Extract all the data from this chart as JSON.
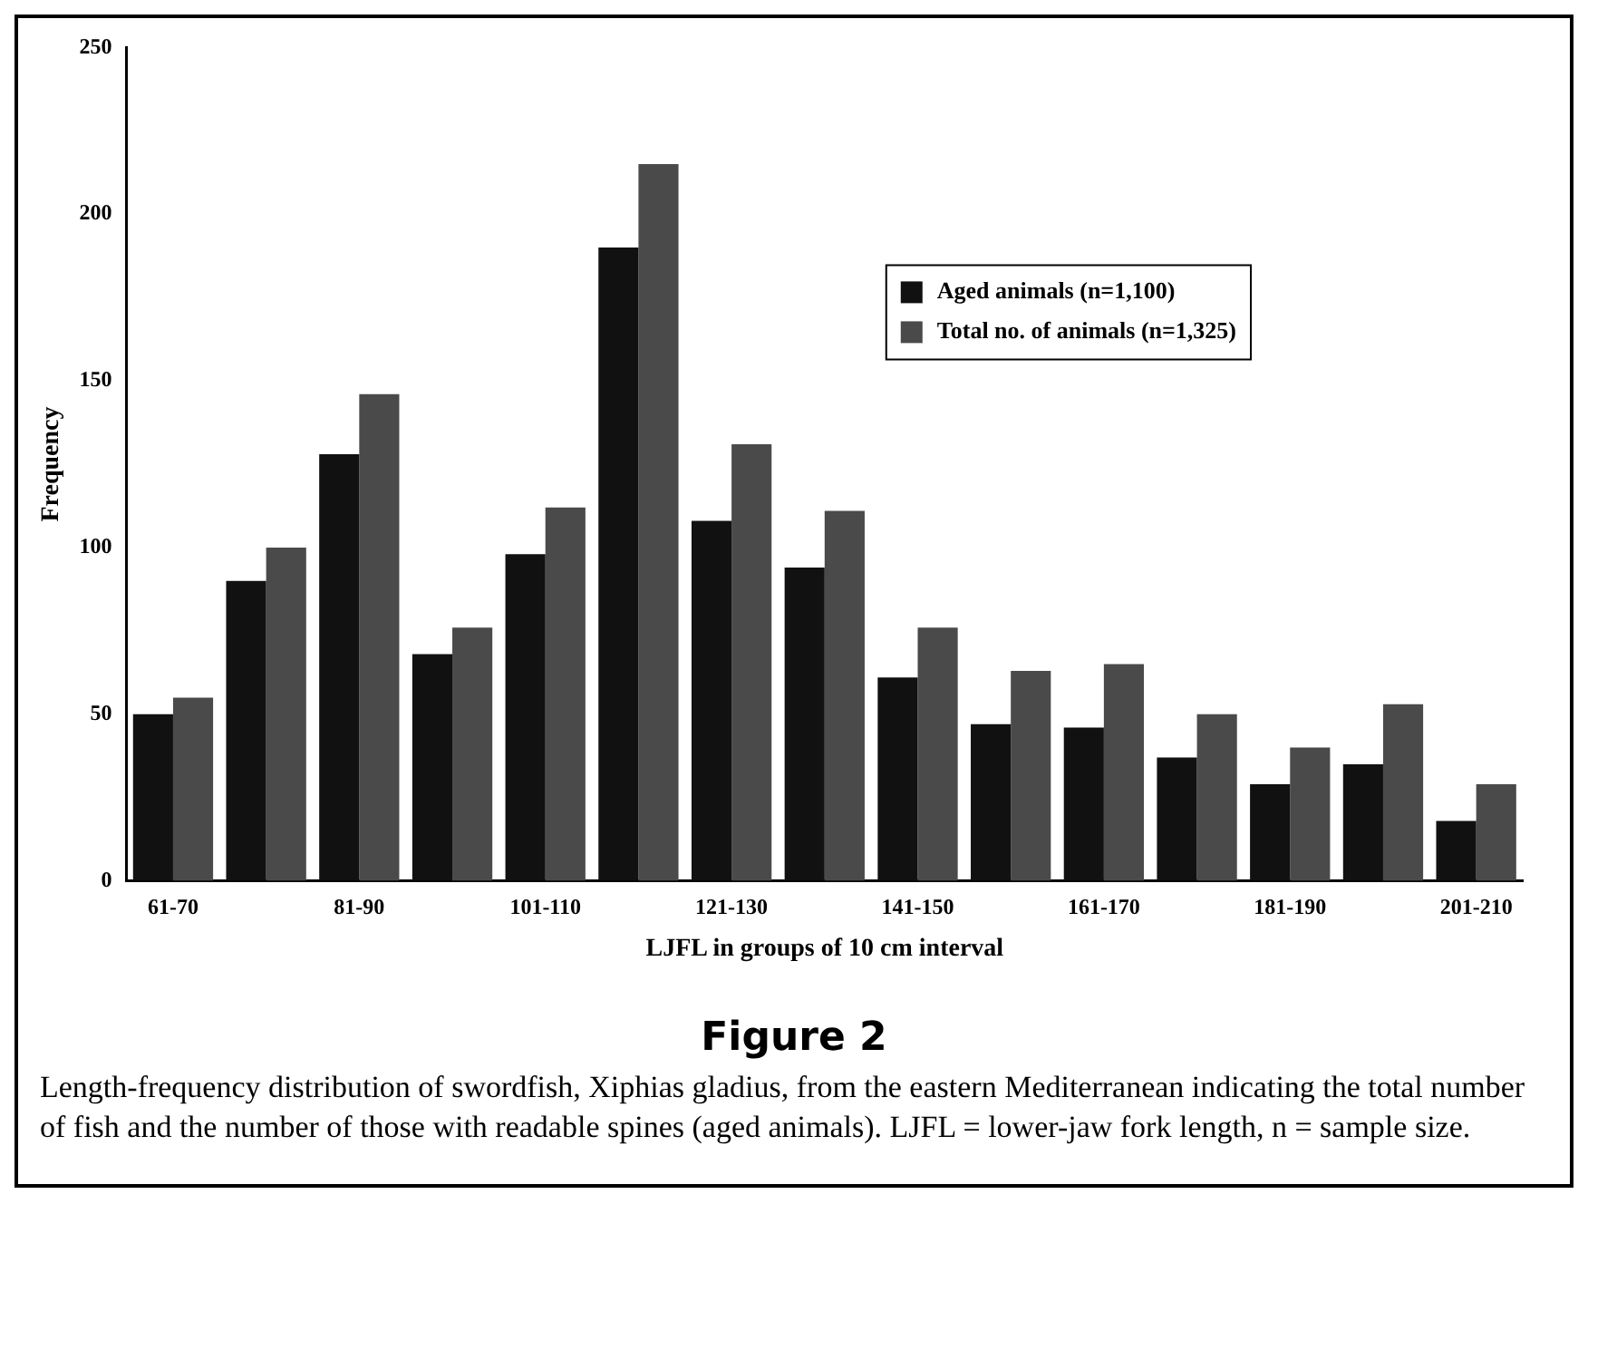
{
  "chart_data": {
    "type": "bar",
    "title": "Figure 2",
    "xlabel": "LJFL in groups of 10 cm interval",
    "ylabel": "Frequency",
    "categories": [
      "61-70",
      null,
      "81-90",
      null,
      "101-110",
      null,
      "121-130",
      null,
      "141-150",
      null,
      "161-170",
      null,
      "181-190",
      null,
      "201-210"
    ],
    "series": [
      {
        "name": "Aged animals (n=1,100)",
        "color": "#111111",
        "values": [
          50,
          90,
          128,
          68,
          98,
          190,
          108,
          94,
          61,
          47,
          46,
          37,
          29,
          35,
          18
        ]
      },
      {
        "name": "Total no. of animals (n=1,325)",
        "color": "#4a4a4a",
        "values": [
          55,
          100,
          146,
          76,
          112,
          215,
          131,
          111,
          76,
          63,
          65,
          50,
          40,
          53,
          29
        ]
      }
    ],
    "ylim": [
      0,
      250
    ],
    "yticks": [
      0,
      50,
      100,
      150,
      200,
      250
    ],
    "grid": false,
    "legend": "top right",
    "annotations": [
      "Length-frequency distribution of swordfish, Xiphias gladius, from the eastern Mediterranean indicating the total number of fish and the number of those with readable spines (aged animals). LJFL = lower-jaw fork length, n = sample size."
    ]
  }
}
